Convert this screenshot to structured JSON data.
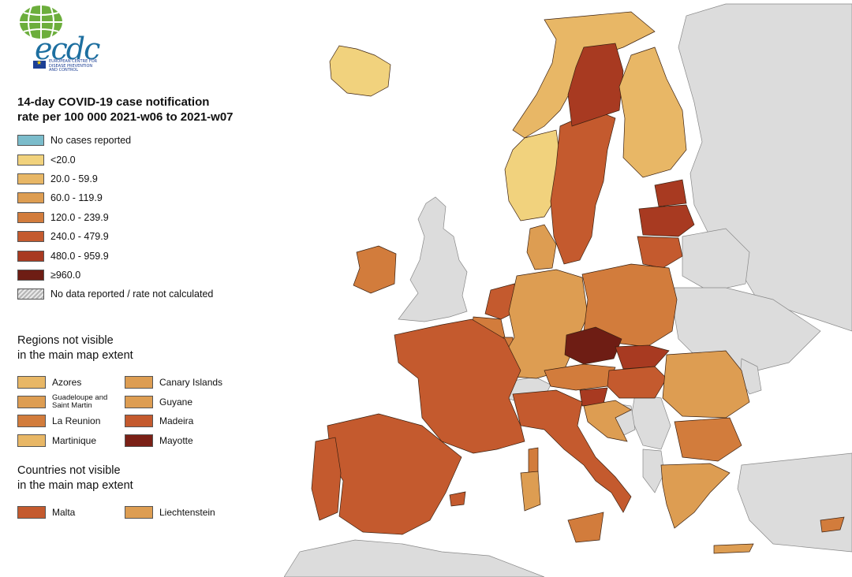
{
  "logo": {
    "wordmark": "ecdc",
    "agency_lines": [
      "EUROPEAN CENTRE FOR",
      "DISEASE PREVENTION",
      "AND CONTROL"
    ]
  },
  "title": {
    "line1": "14-day COVID-19 case notification",
    "line2": "rate per 100 000 2021-w06 to 2021-w07"
  },
  "legend": [
    {
      "label": "No cases reported",
      "color": "#7bbccb"
    },
    {
      "label": "<20.0",
      "color": "#f1d27d"
    },
    {
      "label": "20.0 - 59.9",
      "color": "#e8b766"
    },
    {
      "label": "60.0 - 119.9",
      "color": "#dd9d52"
    },
    {
      "label": "120.0 - 239.9",
      "color": "#d27c3c"
    },
    {
      "label": "240.0 - 479.9",
      "color": "#c45a2e"
    },
    {
      "label": "480.0 - 959.9",
      "color": "#a83a21"
    },
    {
      "label": "≥960.0",
      "color": "#6e1d14"
    },
    {
      "label": "No data reported / rate not calculated",
      "color": "hatch"
    }
  ],
  "regions_section": {
    "heading_line1": "Regions not visible",
    "heading_line2": "in the main map extent",
    "items": [
      {
        "label": "Azores",
        "color": "#e8b766"
      },
      {
        "label": "Canary Islands",
        "color": "#dd9d52"
      },
      {
        "label": "Guadeloupe and Saint Martin",
        "color": "#dd9d52"
      },
      {
        "label": "Guyane",
        "color": "#dd9d52"
      },
      {
        "label": "La Reunion",
        "color": "#d27c3c"
      },
      {
        "label": "Madeira",
        "color": "#c45a2e"
      },
      {
        "label": "Martinique",
        "color": "#e8b766"
      },
      {
        "label": "Mayotte",
        "color": "#7a2016"
      }
    ]
  },
  "countries_section": {
    "heading_line1": "Countries not visible",
    "heading_line2": "in the main map extent",
    "items": [
      {
        "label": "Malta",
        "color": "#c45a2e"
      },
      {
        "label": "Liechtenstein",
        "color": "#dd9d52"
      }
    ]
  },
  "map_regions": [
    {
      "name": "iceland",
      "class": "<20.0"
    },
    {
      "name": "norway-north",
      "class": "20.0 - 59.9"
    },
    {
      "name": "norway-south",
      "class": "<20.0"
    },
    {
      "name": "sweden",
      "class": "240.0 - 479.9"
    },
    {
      "name": "sweden-north",
      "class": "480.0 - 959.9"
    },
    {
      "name": "finland",
      "class": "20.0 - 59.9"
    },
    {
      "name": "estonia",
      "class": "480.0 - 959.9"
    },
    {
      "name": "latvia",
      "class": "480.0 - 959.9"
    },
    {
      "name": "lithuania",
      "class": "240.0 - 479.9"
    },
    {
      "name": "denmark",
      "class": "60.0 - 119.9"
    },
    {
      "name": "ireland",
      "class": "120.0 - 239.9"
    },
    {
      "name": "netherlands",
      "class": "240.0 - 479.9"
    },
    {
      "name": "belgium",
      "class": "120.0 - 239.9"
    },
    {
      "name": "germany",
      "class": "60.0 - 119.9"
    },
    {
      "name": "poland",
      "class": "120.0 - 239.9"
    },
    {
      "name": "czechia",
      "class": "≥960.0"
    },
    {
      "name": "slovakia",
      "class": "480.0 - 959.9"
    },
    {
      "name": "austria",
      "class": "120.0 - 239.9"
    },
    {
      "name": "hungary",
      "class": "240.0 - 479.9"
    },
    {
      "name": "slovenia",
      "class": "480.0 - 959.9"
    },
    {
      "name": "croatia",
      "class": "60.0 - 119.9"
    },
    {
      "name": "romania",
      "class": "60.0 - 119.9"
    },
    {
      "name": "bulgaria",
      "class": "120.0 - 239.9"
    },
    {
      "name": "greece",
      "class": "60.0 - 119.9"
    },
    {
      "name": "france",
      "class": "240.0 - 479.9"
    },
    {
      "name": "luxembourg",
      "class": "120.0 - 239.9"
    },
    {
      "name": "spain",
      "class": "240.0 - 479.9"
    },
    {
      "name": "portugal",
      "class": "240.0 - 479.9"
    },
    {
      "name": "italy",
      "class": "240.0 - 479.9"
    },
    {
      "name": "sardinia",
      "class": "60.0 - 119.9"
    },
    {
      "name": "sicily",
      "class": "120.0 - 239.9"
    },
    {
      "name": "corsica",
      "class": "120.0 - 239.9"
    },
    {
      "name": "cyprus",
      "class": "120.0 - 239.9"
    },
    {
      "name": "crete",
      "class": "60.0 - 119.9"
    },
    {
      "name": "mallorca",
      "class": "240.0 - 479.9"
    }
  ],
  "grey_regions": [
    "uk",
    "switzerland",
    "russia-north",
    "belarus",
    "ukraine",
    "serbia",
    "bosnia",
    "albania",
    "moldova",
    "turkey",
    "north-africa"
  ]
}
